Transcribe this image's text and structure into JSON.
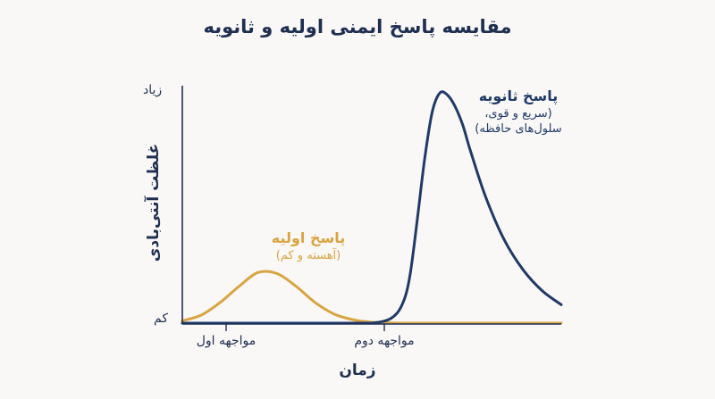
{
  "chart_data": {
    "type": "line",
    "title": "مقایسه پاسخ ایمنی اولیه و ثانویه",
    "xlabel": "زمان",
    "ylabel": "غلظت آنتی‌بادی",
    "y_ticks": [
      "زیاد",
      "کم"
    ],
    "x_ticks": [
      "مواجهه اول",
      "مواجهه دوم"
    ],
    "grid": false,
    "legend": "none",
    "xlim": [
      0,
      100
    ],
    "ylim": [
      0,
      100
    ],
    "x": [
      0,
      5,
      10,
      15,
      20,
      25,
      30,
      35,
      40,
      45,
      50,
      55,
      58,
      60,
      62,
      64,
      66,
      68,
      70,
      72,
      74,
      76,
      80,
      85,
      90,
      95,
      100
    ],
    "series": [
      {
        "name": "پاسخ اولیه",
        "color": "#d9a441",
        "values": [
          1,
          3.5,
          9,
          16,
          22,
          21.5,
          16,
          9,
          4,
          1.5,
          0.4,
          0.1,
          0,
          0,
          0,
          0,
          0,
          0,
          0,
          0,
          0,
          0,
          0,
          0,
          0,
          0,
          0
        ]
      },
      {
        "name": "پاسخ ثانویه",
        "color": "#1f3a68",
        "values": [
          0,
          0,
          0,
          0,
          0,
          0,
          0,
          0,
          0,
          0,
          0,
          2,
          8,
          20,
          45,
          72,
          92,
          100,
          99,
          94,
          86,
          75,
          55,
          36,
          23,
          14,
          8
        ]
      }
    ],
    "annotations": {
      "primary": {
        "label": "پاسخ اولیه",
        "detail": "(آهسته و کم)",
        "color": "#d9a441"
      },
      "secondary": {
        "label": "پاسخ ثانویه",
        "detail": "(سریع و قوی،",
        "detail2": "سلول‌های حافظه)",
        "color": "#1f3a68"
      }
    }
  }
}
